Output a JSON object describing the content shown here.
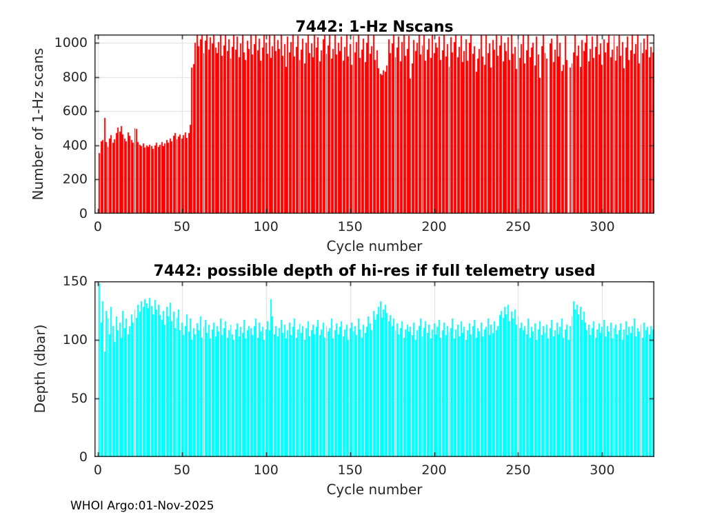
{
  "footer": {
    "text": "WHOI Argo:01-Nov-2025"
  },
  "colors": {
    "background": "#ffffff",
    "axis": "#262626",
    "grid": "#dedede",
    "tick_label": "#262626",
    "title": "#000000",
    "nscans_bar": "#ff0000",
    "depth_bar": "#00ffff"
  },
  "chart_data": [
    {
      "id": "nscans",
      "type": "bar",
      "title": "7442: 1-Hz Nscans",
      "xlabel": "Cycle number",
      "ylabel": "Number of 1-Hz scans",
      "bar_color": "#ff0000",
      "grid": true,
      "legend": "none",
      "xlim": [
        -2,
        331
      ],
      "ylim": [
        0,
        1048
      ],
      "xticks": [
        0,
        50,
        100,
        150,
        200,
        250,
        300
      ],
      "yticks": [
        0,
        200,
        400,
        600,
        800,
        1000
      ],
      "x_start": 1,
      "values": [
        355,
        425,
        430,
        560,
        420,
        390,
        440,
        460,
        415,
        435,
        470,
        505,
        480,
        510,
        465,
        440,
        425,
        475,
        455,
        430,
        415,
        500,
        495,
        420,
        405,
        395,
        410,
        385,
        400,
        390,
        405,
        395,
        380,
        400,
        415,
        390,
        405,
        420,
        395,
        410,
        430,
        415,
        440,
        425,
        455,
        470,
        435,
        450,
        465,
        440,
        460,
        475,
        445,
        470,
        520,
        855,
        875,
        1000,
        1050,
        980,
        1020,
        1050,
        940,
        1010,
        1050,
        960,
        1030,
        995,
        1050,
        970,
        940,
        1005,
        1050,
        925,
        985,
        1045,
        950,
        1020,
        905,
        975,
        1050,
        960,
        1035,
        915,
        995,
        1050,
        945,
        900,
        1010,
        965,
        1050,
        930,
        990,
        1050,
        955,
        1025,
        895,
        970,
        1050,
        1000,
        935,
        1045,
        910,
        980,
        1050,
        950,
        1015,
        965,
        1050,
        925,
        990,
        860,
        1035,
        945,
        1005,
        1050,
        920,
        975,
        1040,
        900,
        960,
        1025,
        880,
        1000,
        1050,
        940,
        995,
        915,
        1050,
        970,
        1030,
        890,
        955,
        1020,
        1050,
        935,
        985,
        1045,
        905,
        965,
        1050,
        930,
        1000,
        950,
        1035,
        895,
        975,
        1050,
        920,
        990,
        870,
        1040,
        945,
        1005,
        1050,
        910,
        960,
        1025,
        885,
        1000,
        1050,
        935,
        980,
        1045,
        900,
        955,
        850,
        820,
        810,
        840,
        830,
        865,
        1020,
        940,
        995,
        1050,
        915,
        970,
        1035,
        890,
        1005,
        1050,
        925,
        965,
        1040,
        790,
        880,
        1015,
        950,
        1000,
        1050,
        930,
        985,
        1045,
        895,
        960,
        1025,
        910,
        1050,
        940,
        1000,
        970,
        1035,
        900,
        955,
        1050,
        920,
        990,
        860,
        1030,
        945,
        1005,
        1050,
        915,
        975,
        1040,
        885,
        950,
        1020,
        895,
        1000,
        1050,
        935,
        980,
        830,
        905,
        965,
        1045,
        920,
        870,
        1050,
        940,
        995,
        855,
        1015,
        960,
        1050,
        925,
        985,
        1040,
        890,
        1000,
        950,
        1030,
        900,
        1050,
        935,
        975,
        845,
        1020,
        910,
        990,
        1050,
        880,
        955,
        1045,
        915,
        970,
        1000,
        865,
        1035,
        930,
        795,
        980,
        1050,
        940,
        905,
        0,
        995,
        1025,
        885,
        960,
        1050,
        920,
        1000,
        835,
        870,
        1040,
        900,
        0,
        855,
        880,
        945,
        1050,
        925,
        985,
        860,
        1015,
        950,
        1000,
        1050,
        890,
        965,
        1035,
        910,
        975,
        1050,
        930,
        995,
        870,
        1020,
        945,
        1000,
        1050,
        915,
        960,
        1040,
        895,
        980,
        1050,
        925,
        1005,
        850,
        970,
        1035,
        900,
        955,
        1050,
        935,
        990,
        1045,
        880,
        1000,
        940,
        1025,
        960,
        1050,
        915,
        975,
        945
      ]
    },
    {
      "id": "depth",
      "type": "bar",
      "title": "7442: possible depth of hi-res if full telemetry used",
      "xlabel": "Cycle number",
      "ylabel": "Depth (dbar)",
      "bar_color": "#00ffff",
      "grid": true,
      "legend": "none",
      "xlim": [
        -2,
        331
      ],
      "ylim": [
        0,
        150
      ],
      "xticks": [
        0,
        50,
        100,
        150,
        200,
        250,
        300
      ],
      "yticks": [
        0,
        50,
        100,
        150
      ],
      "x_start": 1,
      "values": [
        148,
        115,
        133,
        90,
        125,
        118,
        105,
        128,
        112,
        98,
        120,
        108,
        115,
        102,
        125,
        110,
        118,
        105,
        112,
        122,
        115,
        126,
        119,
        130,
        124,
        133,
        128,
        135,
        131,
        127,
        136,
        129,
        122,
        134,
        126,
        130,
        121,
        117,
        125,
        113,
        128,
        120,
        132,
        116,
        124,
        110,
        119,
        126,
        108,
        115,
        104,
        112,
        122,
        107,
        118,
        100,
        110,
        105,
        114,
        108,
        120,
        102,
        111,
        117,
        106,
        113,
        101,
        109,
        115,
        103,
        112,
        107,
        118,
        104,
        110,
        116,
        102,
        108,
        113,
        105,
        100,
        109,
        114,
        103,
        111,
        106,
        117,
        101,
        108,
        112,
        110,
        104,
        112,
        118,
        102,
        115,
        107,
        111,
        100,
        109,
        116,
        108,
        135,
        120,
        105,
        112,
        103,
        110,
        117,
        106,
        113,
        101,
        108,
        115,
        104,
        111,
        118,
        102,
        109,
        114,
        106,
        112,
        100,
        110,
        116,
        103,
        108,
        113,
        105,
        111,
        117,
        104,
        109,
        115,
        102,
        112,
        107,
        110,
        118,
        101,
        108,
        114,
        105,
        111,
        116,
        103,
        109,
        113,
        100,
        110,
        115,
        107,
        112,
        104,
        118,
        109,
        102,
        113,
        106,
        111,
        120,
        114,
        108,
        125,
        117,
        122,
        128,
        133,
        119,
        126,
        130,
        123,
        116,
        121,
        112,
        118,
        108,
        114,
        105,
        110,
        116,
        102,
        109,
        113,
        107,
        111,
        104,
        115,
        100,
        108,
        112,
        118,
        103,
        110,
        116,
        106,
        113,
        101,
        109,
        114,
        105,
        111,
        117,
        102,
        108,
        115,
        104,
        112,
        107,
        110,
        118,
        101,
        109,
        113,
        103,
        116,
        106,
        111,
        100,
        108,
        114,
        105,
        112,
        117,
        102,
        110,
        107,
        115,
        103,
        109,
        111,
        118,
        104,
        113,
        106,
        116,
        108,
        112,
        121,
        125,
        119,
        128,
        122,
        130,
        116,
        124,
        118,
        126,
        113,
        120,
        110,
        115,
        108,
        112,
        105,
        118,
        102,
        111,
        107,
        114,
        100,
        109,
        116,
        104,
        112,
        106,
        113,
        101,
        110,
        117,
        103,
        108,
        115,
        105,
        111,
        118,
        102,
        109,
        113,
        100,
        112,
        120,
        133,
        126,
        130,
        122,
        128,
        117,
        124,
        115,
        108,
        113,
        104,
        110,
        116,
        102,
        109,
        114,
        106,
        111,
        117,
        103,
        112,
        107,
        115,
        101,
        110,
        113,
        105,
        108,
        114,
        100,
        109,
        116,
        104,
        111,
        106,
        112,
        118,
        103,
        110,
        107,
        113,
        102,
        115,
        108,
        111,
        105,
        112,
        109
      ]
    }
  ]
}
